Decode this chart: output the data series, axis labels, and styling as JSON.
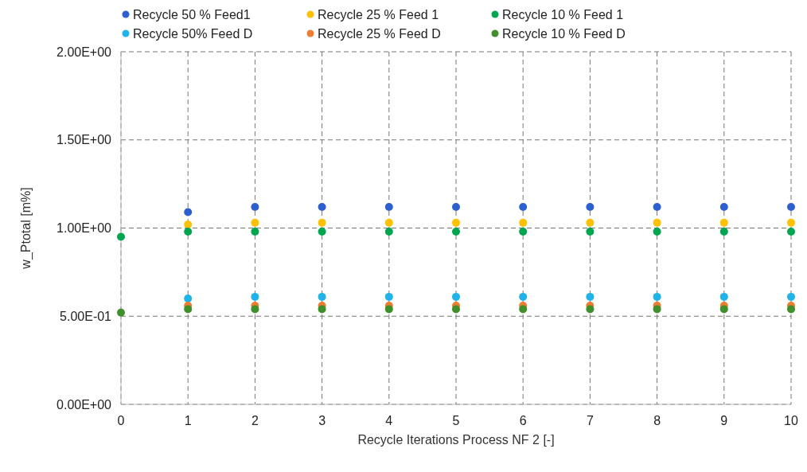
{
  "chart_data": {
    "type": "scatter",
    "xlabel": "Recycle Iterations Process NF 2 [-]",
    "ylabel": "w_Ptotal [m%]",
    "x": [
      0,
      1,
      2,
      3,
      4,
      5,
      6,
      7,
      8,
      9,
      10
    ],
    "xlim": [
      0,
      10
    ],
    "xticks": [
      0,
      1,
      2,
      3,
      4,
      5,
      6,
      7,
      8,
      9,
      10
    ],
    "ylim": [
      0,
      2
    ],
    "yticks": [
      {
        "value": 0,
        "label": "0.00E+00"
      },
      {
        "value": 0.5,
        "label": "5.00E-01"
      },
      {
        "value": 1,
        "label": "1.00E+00"
      },
      {
        "value": 1.5,
        "label": "1.50E+00"
      },
      {
        "value": 2,
        "label": "2.00E+00"
      }
    ],
    "grid": true,
    "legend": "top",
    "marker": "circle",
    "series": [
      {
        "name": "Recycle 50 % Feed1",
        "color": "#2e5fcf",
        "values": [
          null,
          1.09,
          1.12,
          1.12,
          1.12,
          1.12,
          1.12,
          1.12,
          1.12,
          1.12,
          1.12
        ]
      },
      {
        "name": "Recycle 25 % Feed 1",
        "color": "#ffc000",
        "values": [
          null,
          1.02,
          1.03,
          1.03,
          1.03,
          1.03,
          1.03,
          1.03,
          1.03,
          1.03,
          1.03
        ]
      },
      {
        "name": "Recycle 10 % Feed 1",
        "color": "#00a550",
        "values": [
          0.95,
          0.98,
          0.98,
          0.98,
          0.98,
          0.98,
          0.98,
          0.98,
          0.98,
          0.98,
          0.98
        ]
      },
      {
        "name": "Recycle 50% Feed D",
        "color": "#1fb3ea",
        "values": [
          null,
          0.6,
          0.61,
          0.61,
          0.61,
          0.61,
          0.61,
          0.61,
          0.61,
          0.61,
          0.61
        ]
      },
      {
        "name": "Recycle 25 % Feed D",
        "color": "#ed7d31",
        "values": [
          null,
          0.56,
          0.56,
          0.56,
          0.56,
          0.56,
          0.56,
          0.56,
          0.56,
          0.56,
          0.56
        ]
      },
      {
        "name": "Recycle 10 % Feed D",
        "color": "#3f8f2a",
        "values": [
          0.52,
          0.54,
          0.54,
          0.54,
          0.54,
          0.54,
          0.54,
          0.54,
          0.54,
          0.54,
          0.54
        ]
      }
    ]
  }
}
